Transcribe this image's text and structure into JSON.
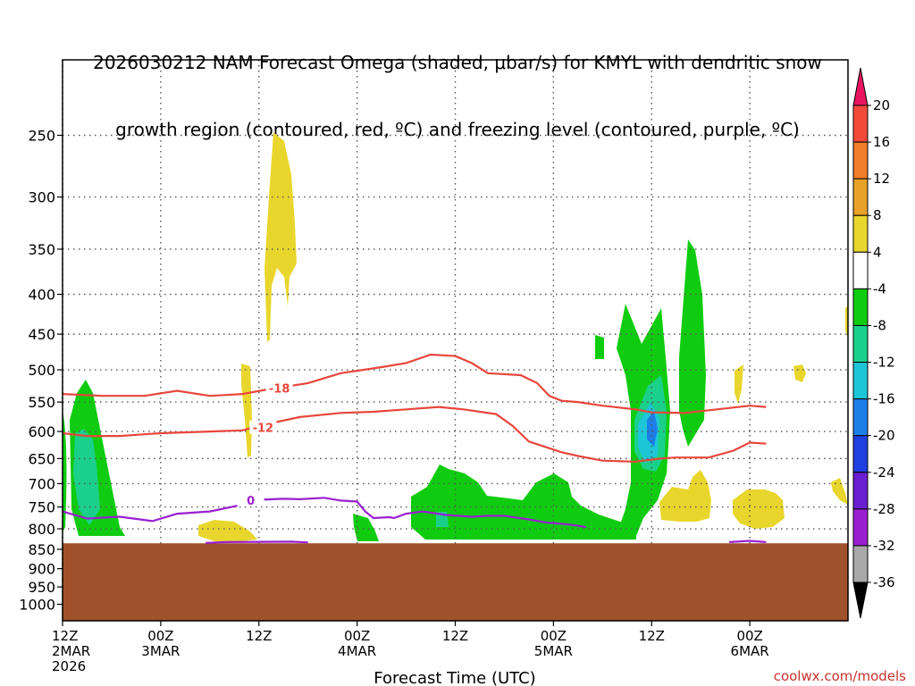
{
  "title_line1": "2026030212 NAM Forecast Omega (shaded, μbar/s) for KMYL with dendritic snow",
  "title_line2": "growth region (contoured, red, ºC) and freezing level (contoured, purple, ºC)",
  "credit": "coolwx.com/models",
  "colors": {
    "dgz": "#e8463c",
    "freezing": "#9a1fd0",
    "ground": "#a0522d",
    "grid": "#555555"
  },
  "chart_data": {
    "type": "heatmap",
    "xlabel": "Forecast Time (UTC)",
    "ylabel": "",
    "y_scale": "log",
    "y_reversed": true,
    "xlim_hours": [
      0,
      96
    ],
    "ylim": [
      200,
      1050
    ],
    "grid": true,
    "y_ticks": [
      250,
      300,
      350,
      400,
      450,
      500,
      550,
      600,
      650,
      700,
      750,
      800,
      850,
      900,
      950,
      1000
    ],
    "x_ticks": [
      {
        "hour": 0,
        "line1": "12Z",
        "line2": "2MAR",
        "line3": "2026"
      },
      {
        "hour": 12,
        "line1": "00Z",
        "line2": "3MAR",
        "line3": ""
      },
      {
        "hour": 24,
        "line1": "12Z",
        "line2": "",
        "line3": ""
      },
      {
        "hour": 36,
        "line1": "00Z",
        "line2": "4MAR",
        "line3": ""
      },
      {
        "hour": 48,
        "line1": "12Z",
        "line2": "",
        "line3": ""
      },
      {
        "hour": 60,
        "line1": "00Z",
        "line2": "5MAR",
        "line3": ""
      },
      {
        "hour": 72,
        "line1": "12Z",
        "line2": "",
        "line3": ""
      },
      {
        "hour": 84,
        "line1": "00Z",
        "line2": "6MAR",
        "line3": ""
      }
    ],
    "ground_top_pressure": 835,
    "colorbar": {
      "labels": [
        "20",
        "16",
        "12",
        "8",
        "4",
        "-4",
        "-8",
        "-12",
        "-16",
        "-20",
        "-24",
        "-28",
        "-32",
        "-36"
      ],
      "colors": [
        "#e8145f",
        "#f24a3a",
        "#f27d2a",
        "#e8a228",
        "#e9d62d",
        "#ffffff",
        "#10cc10",
        "#1bd08a",
        "#1dc6d6",
        "#1d7ee8",
        "#1f3fe0",
        "#6a1fd0",
        "#9a1fd0",
        "#a8a8a8",
        "#000000"
      ]
    },
    "series": [
      {
        "name": "-18",
        "label_hour": 26.5,
        "label_p": 528,
        "points": [
          [
            0,
            537
          ],
          [
            5,
            540
          ],
          [
            10,
            540
          ],
          [
            14,
            532
          ],
          [
            18,
            540
          ],
          [
            22,
            537
          ],
          [
            25,
            530
          ],
          [
            30,
            520
          ],
          [
            34,
            505
          ],
          [
            39,
            496
          ],
          [
            42,
            490
          ],
          [
            45,
            478
          ],
          [
            48,
            480
          ],
          [
            50,
            490
          ],
          [
            52,
            505
          ],
          [
            56,
            508
          ],
          [
            58,
            520
          ],
          [
            59.5,
            540
          ],
          [
            61,
            548
          ],
          [
            63,
            550
          ],
          [
            66,
            556
          ],
          [
            70,
            562
          ],
          [
            72,
            567
          ],
          [
            76,
            568
          ],
          [
            80,
            562
          ],
          [
            84,
            556
          ],
          [
            86,
            558
          ]
        ]
      },
      {
        "name": "-12",
        "label_hour": 24.5,
        "label_p": 593,
        "points": [
          [
            0,
            603
          ],
          [
            3,
            608
          ],
          [
            7,
            608
          ],
          [
            10,
            605
          ],
          [
            12,
            603
          ],
          [
            18,
            600
          ],
          [
            22,
            598
          ],
          [
            24,
            590
          ],
          [
            29,
            575
          ],
          [
            34,
            568
          ],
          [
            38,
            566
          ],
          [
            42,
            562
          ],
          [
            46,
            558
          ],
          [
            49,
            562
          ],
          [
            53,
            570
          ],
          [
            55,
            590
          ],
          [
            57,
            618
          ],
          [
            59,
            628
          ],
          [
            61,
            638
          ],
          [
            63,
            645
          ],
          [
            66,
            654
          ],
          [
            70,
            656
          ],
          [
            73,
            650
          ],
          [
            75,
            648
          ],
          [
            79,
            648
          ],
          [
            82,
            635
          ],
          [
            84,
            620
          ],
          [
            86,
            622
          ]
        ]
      },
      {
        "name": "0",
        "label_hour": 23,
        "label_p": 735,
        "points": [
          [
            0,
            760
          ],
          [
            3,
            776
          ],
          [
            7,
            772
          ],
          [
            11,
            782
          ],
          [
            14,
            765
          ],
          [
            18,
            760
          ],
          [
            22,
            745
          ],
          [
            23,
            735
          ],
          [
            27,
            732
          ],
          [
            29,
            733
          ],
          [
            32,
            730
          ],
          [
            34,
            736
          ],
          [
            36,
            738
          ],
          [
            37,
            760
          ],
          [
            38,
            775
          ],
          [
            40,
            773
          ],
          [
            40.5,
            775
          ],
          [
            42,
            765
          ],
          [
            44,
            760
          ],
          [
            47,
            768
          ],
          [
            50,
            772
          ],
          [
            52,
            770
          ],
          [
            54,
            770
          ],
          [
            57,
            778
          ],
          [
            59,
            785
          ],
          [
            62,
            790
          ],
          [
            64,
            796
          ]
        ]
      },
      {
        "name": "0",
        "label_hour": null,
        "label_p": null,
        "points": [
          [
            17.5,
            834
          ],
          [
            20,
            832
          ],
          [
            28,
            831
          ],
          [
            30,
            833
          ]
        ]
      },
      {
        "name": "0",
        "label_hour": null,
        "label_p": null,
        "points": [
          [
            81.5,
            832
          ],
          [
            84,
            829
          ],
          [
            86,
            832
          ]
        ]
      }
    ]
  }
}
